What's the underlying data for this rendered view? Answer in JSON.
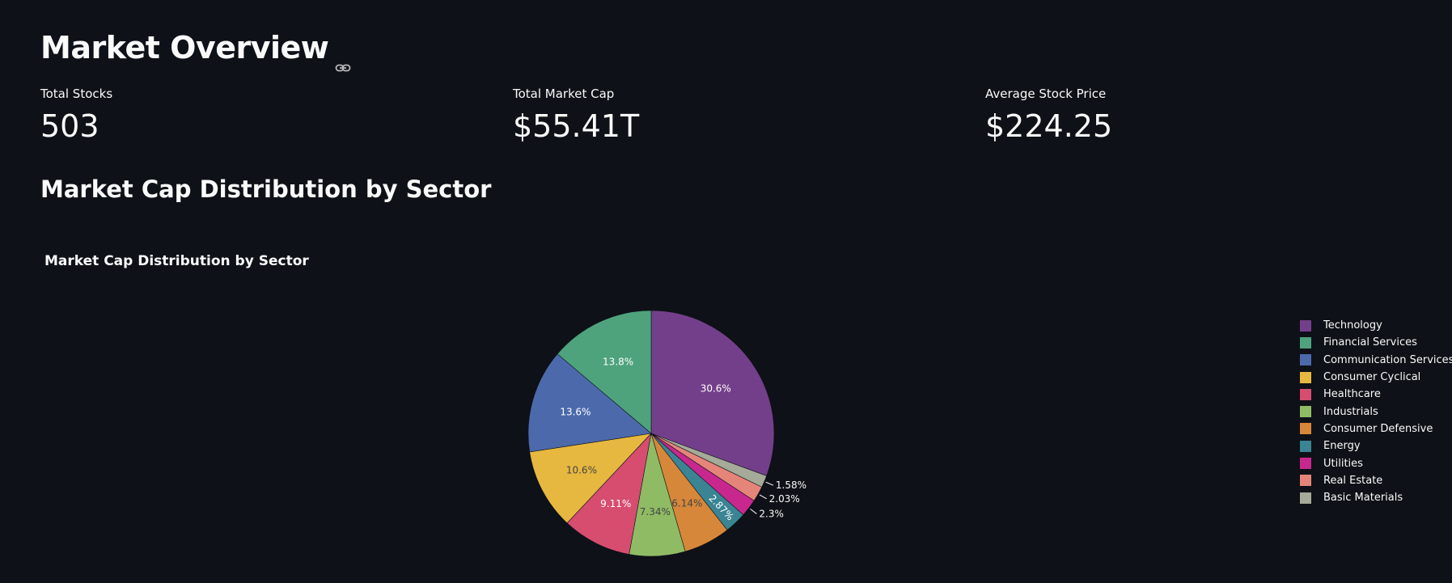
{
  "header": {
    "title": "Market Overview"
  },
  "metrics": [
    {
      "label": "Total Stocks",
      "value": "503"
    },
    {
      "label": "Total Market Cap",
      "value": "$55.41T"
    },
    {
      "label": "Average Stock Price",
      "value": "$224.25"
    }
  ],
  "section": {
    "heading": "Market Cap Distribution by Sector"
  },
  "chart_data": {
    "type": "pie",
    "title": "Market Cap Distribution by Sector",
    "legend_position": "right",
    "slices": [
      {
        "label": "Technology",
        "value": 30.6,
        "text": "30.6%",
        "color": "#743f8a",
        "label_color": "#ffffff"
      },
      {
        "label": "Basic Materials",
        "value": 1.58,
        "text": "1.58%",
        "color": "#a5aa99",
        "label_color": "#ffffff"
      },
      {
        "label": "Real Estate",
        "value": 2.03,
        "text": "2.03%",
        "color": "#e58579",
        "label_color": "#ffffff"
      },
      {
        "label": "Utilities",
        "value": 2.3,
        "text": "2.3%",
        "color": "#c8288e",
        "label_color": "#ffffff"
      },
      {
        "label": "Energy",
        "value": 2.87,
        "text": "2.87%",
        "color": "#3a8493",
        "label_color": "#ffffff"
      },
      {
        "label": "Consumer Defensive",
        "value": 6.14,
        "text": "6.14%",
        "color": "#d7873a",
        "label_color": "#444444"
      },
      {
        "label": "Industrials",
        "value": 7.34,
        "text": "7.34%",
        "color": "#8fbb65",
        "label_color": "#444444"
      },
      {
        "label": "Healthcare",
        "value": 9.11,
        "text": "9.11%",
        "color": "#d64d70",
        "label_color": "#ffffff"
      },
      {
        "label": "Consumer Cyclical",
        "value": 10.6,
        "text": "10.6%",
        "color": "#e7b840",
        "label_color": "#444444"
      },
      {
        "label": "Communication Services",
        "value": 13.6,
        "text": "13.6%",
        "color": "#4c6aab",
        "label_color": "#ffffff"
      },
      {
        "label": "Financial Services",
        "value": 13.8,
        "text": "13.8%",
        "color": "#4ea37c",
        "label_color": "#ffffff"
      }
    ],
    "legend_order": [
      "Technology",
      "Financial Services",
      "Communication Services",
      "Consumer Cyclical",
      "Healthcare",
      "Industrials",
      "Consumer Defensive",
      "Energy",
      "Utilities",
      "Real Estate",
      "Basic Materials"
    ]
  }
}
